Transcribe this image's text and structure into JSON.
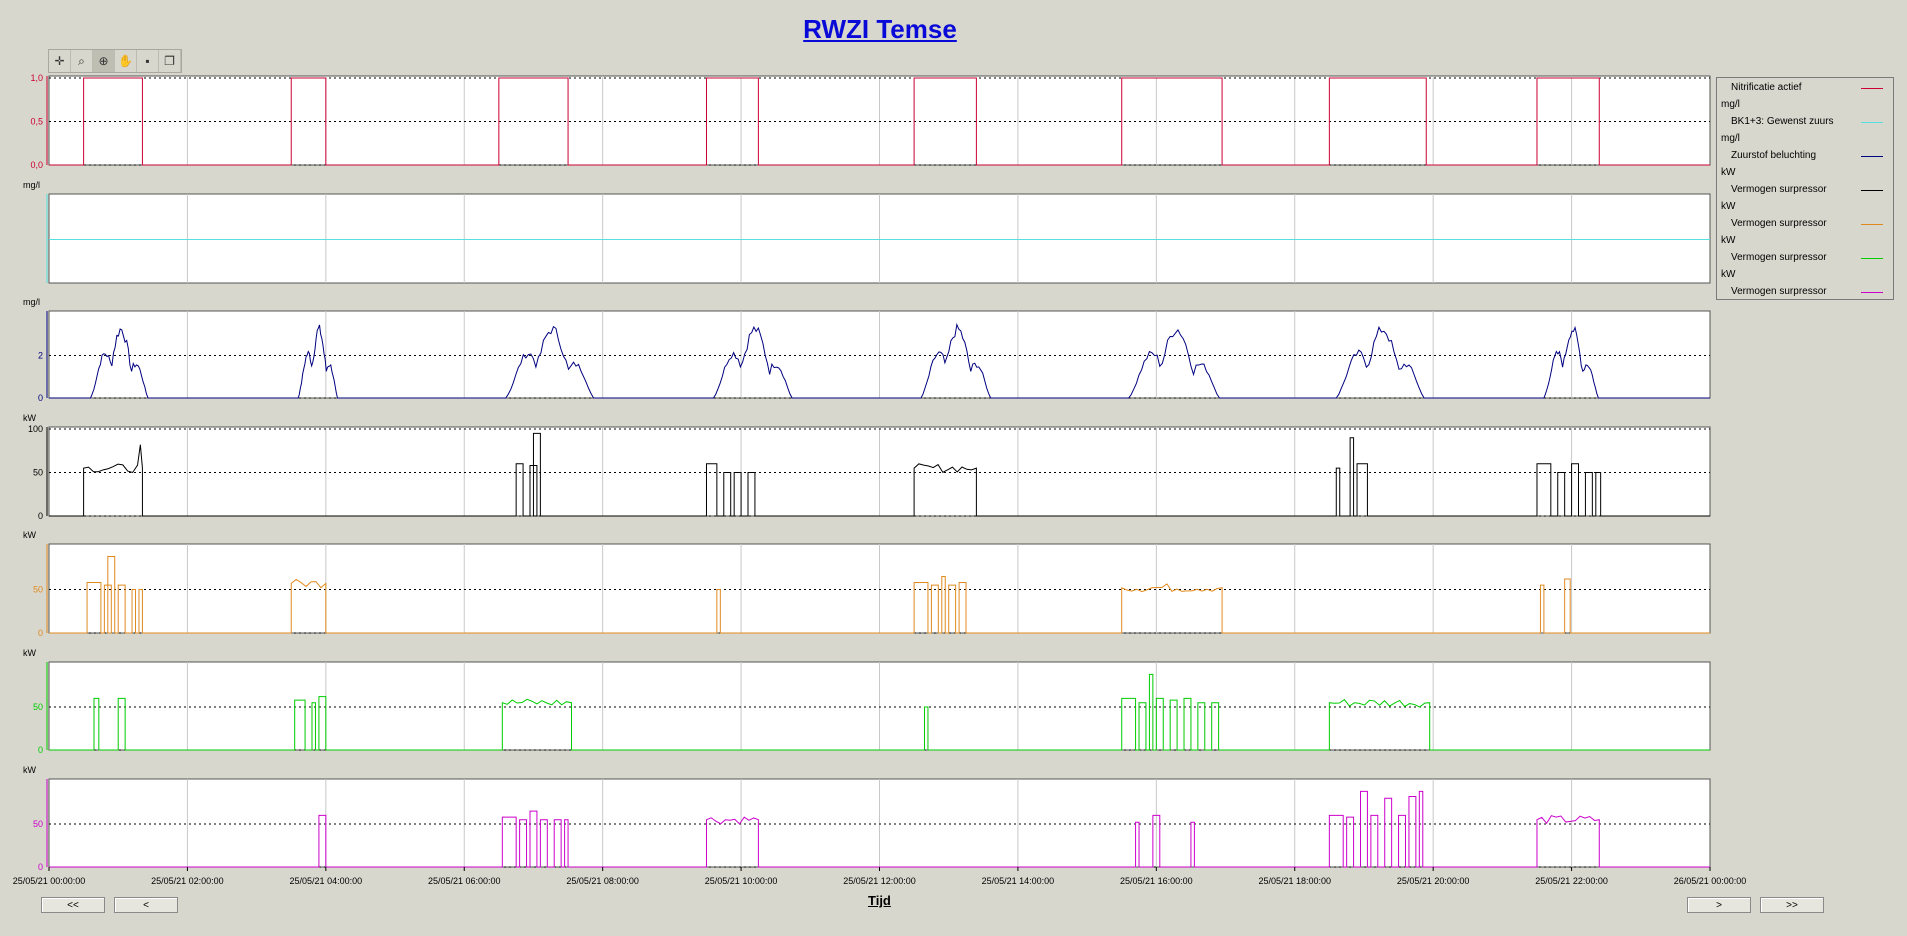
{
  "title": "RWZI Temse",
  "toolbar": [
    {
      "name": "crosshair-icon",
      "glyph": "✛"
    },
    {
      "name": "zoom-axis-icon",
      "glyph": "⌕"
    },
    {
      "name": "zoom-in-icon",
      "glyph": "⊕"
    },
    {
      "name": "pan-hand-icon",
      "glyph": "✋"
    },
    {
      "name": "save-icon",
      "glyph": "▪"
    },
    {
      "name": "copy-icon",
      "glyph": "❐"
    }
  ],
  "legend": [
    {
      "unit": "",
      "label": "Nitrificatie actief",
      "color": "#cc0033"
    },
    {
      "unit": "mg/l",
      "label": "BK1+3: Gewenst zuurs",
      "color": "#55e0e0"
    },
    {
      "unit": "mg/l",
      "label": "Zuurstof beluchting",
      "color": "#000080"
    },
    {
      "unit": "kW",
      "label": "Vermogen surpressor",
      "color": "#000000"
    },
    {
      "unit": "kW",
      "label": "Vermogen surpressor",
      "color": "#e08a1e"
    },
    {
      "unit": "kW",
      "label": "Vermogen surpressor",
      "color": "#00cc00"
    },
    {
      "unit": "kW",
      "label": "Vermogen surpressor",
      "color": "#cc00cc"
    }
  ],
  "buttons": {
    "first": "<<",
    "prev": "<",
    "next": ">",
    "last": ">>"
  },
  "xaxis_label": "Tijd",
  "chart_data": {
    "type": "line",
    "x_ticks": [
      "25/05/21 00:00:00",
      "25/05/21 02:00:00",
      "25/05/21 04:00:00",
      "25/05/21 06:00:00",
      "25/05/21 08:00:00",
      "25/05/21 10:00:00",
      "25/05/21 12:00:00",
      "25/05/21 14:00:00",
      "25/05/21 16:00:00",
      "25/05/21 18:00:00",
      "25/05/21 20:00:00",
      "25/05/21 22:00:00",
      "26/05/21 00:00:00"
    ],
    "xlim_hours": [
      0,
      24
    ],
    "panels": [
      {
        "unit": "",
        "color": "#cc0033",
        "ylim": [
          0,
          1
        ],
        "ticks": [
          "0,0",
          "0,5",
          "1,0"
        ],
        "tick_values": [
          0,
          0.5,
          1.0
        ],
        "kind": "step",
        "on_intervals_h": [
          [
            0.5,
            1.35
          ],
          [
            3.5,
            4.0
          ],
          [
            6.5,
            7.5
          ],
          [
            9.5,
            10.25
          ],
          [
            12.5,
            13.4
          ],
          [
            15.5,
            16.95
          ],
          [
            18.5,
            19.9
          ],
          [
            21.5,
            22.4
          ]
        ]
      },
      {
        "unit": "mg/l",
        "color": "#55e0e0",
        "ylim": [
          0,
          4
        ],
        "ticks": [],
        "tick_values": [],
        "kind": "constant",
        "value": 2.0
      },
      {
        "unit": "mg/l",
        "color": "#000080",
        "ylim": [
          0,
          4
        ],
        "ticks": [
          "0",
          "2"
        ],
        "tick_values": [
          0,
          2
        ],
        "kind": "oxygen",
        "humps_h": [
          [
            0.6,
            1.55
          ],
          [
            3.6,
            4.25
          ],
          [
            6.6,
            8.05
          ],
          [
            9.6,
            10.9
          ],
          [
            12.6,
            13.75
          ],
          [
            15.6,
            17.1
          ],
          [
            18.6,
            20.05
          ],
          [
            21.6,
            22.5
          ]
        ],
        "peak_mg_l": 3.5
      },
      {
        "unit": "kW",
        "color": "#000000",
        "ylim": [
          0,
          100
        ],
        "ticks": [
          "0",
          "50",
          "100"
        ],
        "tick_values": [
          0,
          50,
          100
        ],
        "kind": "power",
        "blocks_kw": [
          [
            0.5,
            1.35,
            55,
            82
          ],
          [
            6.75,
            6.85,
            60,
            0
          ],
          [
            6.95,
            7.05,
            58,
            0
          ],
          [
            7.0,
            7.1,
            95,
            0
          ],
          [
            9.5,
            9.65,
            60,
            0
          ],
          [
            9.75,
            9.85,
            50,
            0
          ],
          [
            9.9,
            10.0,
            50,
            0
          ],
          [
            10.1,
            10.2,
            50,
            0
          ],
          [
            12.5,
            13.4,
            55,
            0
          ],
          [
            18.6,
            18.65,
            55,
            0
          ],
          [
            18.8,
            18.85,
            90,
            0
          ],
          [
            18.9,
            19.05,
            60,
            0
          ],
          [
            21.5,
            21.7,
            60,
            0
          ],
          [
            21.8,
            21.9,
            50,
            0
          ],
          [
            22.0,
            22.1,
            60,
            0
          ],
          [
            22.2,
            22.3,
            50,
            0
          ],
          [
            22.35,
            22.42,
            50,
            0
          ]
        ]
      },
      {
        "unit": "kW",
        "color": "#e08a1e",
        "ylim": [
          0,
          100
        ],
        "ticks": [
          "0",
          "50"
        ],
        "tick_values": [
          0,
          50
        ],
        "kind": "power",
        "blocks_kw": [
          [
            0.55,
            0.75,
            58,
            0
          ],
          [
            0.8,
            0.9,
            55,
            0
          ],
          [
            0.85,
            0.95,
            88,
            0
          ],
          [
            1.0,
            1.1,
            55,
            0
          ],
          [
            1.2,
            1.25,
            50,
            0
          ],
          [
            1.3,
            1.35,
            50,
            0
          ],
          [
            3.5,
            4.0,
            57,
            0
          ],
          [
            9.65,
            9.7,
            50,
            0
          ],
          [
            12.5,
            12.7,
            58,
            0
          ],
          [
            12.75,
            12.85,
            55,
            0
          ],
          [
            12.9,
            12.95,
            65,
            0
          ],
          [
            13.0,
            13.1,
            55,
            0
          ],
          [
            13.15,
            13.25,
            58,
            0
          ],
          [
            15.5,
            16.95,
            52,
            0
          ],
          [
            21.55,
            21.6,
            55,
            0
          ],
          [
            21.9,
            21.98,
            62,
            0
          ]
        ]
      },
      {
        "unit": "kW",
        "color": "#00cc00",
        "ylim": [
          0,
          100
        ],
        "ticks": [
          "0",
          "50"
        ],
        "tick_values": [
          0,
          50
        ],
        "kind": "power",
        "blocks_kw": [
          [
            0.65,
            0.72,
            60,
            0
          ],
          [
            1.0,
            1.1,
            60,
            0
          ],
          [
            3.55,
            3.7,
            58,
            0
          ],
          [
            3.8,
            3.85,
            55,
            0
          ],
          [
            3.9,
            4.0,
            62,
            0
          ],
          [
            6.55,
            7.55,
            55,
            0
          ],
          [
            12.65,
            12.7,
            50,
            0
          ],
          [
            15.5,
            15.7,
            60,
            0
          ],
          [
            15.75,
            15.85,
            55,
            0
          ],
          [
            15.9,
            15.95,
            88,
            0
          ],
          [
            16.0,
            16.1,
            60,
            0
          ],
          [
            16.2,
            16.3,
            58,
            0
          ],
          [
            16.4,
            16.5,
            60,
            0
          ],
          [
            16.6,
            16.7,
            55,
            0
          ],
          [
            16.8,
            16.9,
            55,
            0
          ],
          [
            18.5,
            19.95,
            55,
            0
          ]
        ]
      },
      {
        "unit": "kW",
        "color": "#cc00cc",
        "ylim": [
          0,
          100
        ],
        "ticks": [
          "0",
          "50"
        ],
        "tick_values": [
          0,
          50
        ],
        "kind": "power",
        "blocks_kw": [
          [
            3.9,
            4.0,
            60,
            0
          ],
          [
            6.55,
            6.75,
            58,
            0
          ],
          [
            6.8,
            6.9,
            55,
            0
          ],
          [
            6.95,
            7.05,
            65,
            0
          ],
          [
            7.1,
            7.2,
            55,
            0
          ],
          [
            7.3,
            7.4,
            55,
            0
          ],
          [
            7.45,
            7.5,
            55,
            0
          ],
          [
            9.5,
            10.25,
            55,
            0
          ],
          [
            15.7,
            15.75,
            52,
            0
          ],
          [
            15.95,
            16.05,
            60,
            0
          ],
          [
            16.5,
            16.55,
            52,
            0
          ],
          [
            18.5,
            18.7,
            60,
            0
          ],
          [
            18.75,
            18.85,
            58,
            0
          ],
          [
            18.95,
            19.05,
            88,
            0
          ],
          [
            19.1,
            19.2,
            60,
            0
          ],
          [
            19.3,
            19.4,
            80,
            0
          ],
          [
            19.5,
            19.6,
            60,
            0
          ],
          [
            19.65,
            19.75,
            82,
            0
          ],
          [
            19.8,
            19.85,
            88,
            0
          ],
          [
            21.5,
            22.4,
            55,
            0
          ]
        ]
      }
    ]
  }
}
